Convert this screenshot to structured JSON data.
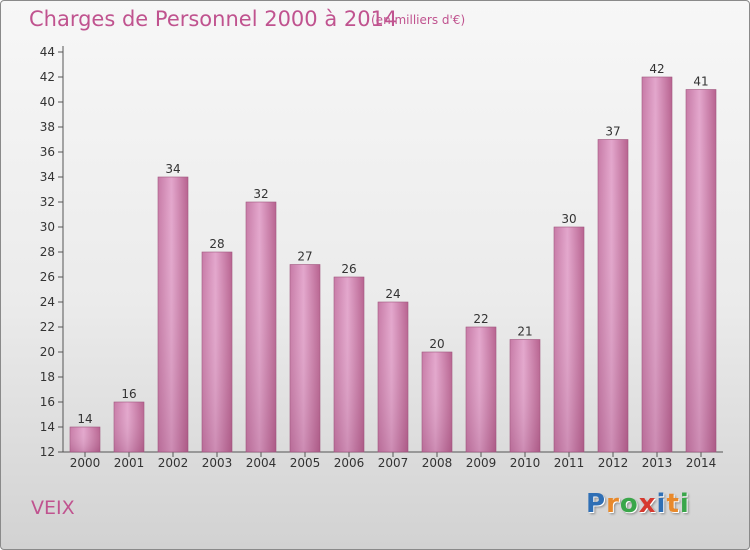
{
  "chart_data": {
    "type": "bar",
    "title": "Charges de Personnel 2000 à 2014",
    "subtitle": "(en milliers d'€)",
    "categories": [
      "2000",
      "2001",
      "2002",
      "2003",
      "2004",
      "2005",
      "2006",
      "2007",
      "2008",
      "2009",
      "2010",
      "2011",
      "2012",
      "2013",
      "2014"
    ],
    "values": [
      14,
      16,
      34,
      28,
      32,
      27,
      26,
      24,
      20,
      22,
      21,
      30,
      37,
      42,
      41
    ],
    "ylim": [
      12,
      44
    ],
    "yticks": [
      12,
      14,
      16,
      18,
      20,
      22,
      24,
      26,
      28,
      30,
      32,
      34,
      36,
      38,
      40,
      42,
      44
    ],
    "grid": false,
    "bar_color": "#d98fbd"
  },
  "footer": {
    "commune": "VEIX",
    "logo_letters": [
      "P",
      "r",
      "o",
      "x",
      "i",
      "t",
      "i"
    ],
    "logo_colors": [
      "#2f6fb5",
      "#e8892b",
      "#3aa64a",
      "#d63a2f",
      "#2f6fb5",
      "#e8892b",
      "#3aa64a"
    ]
  }
}
